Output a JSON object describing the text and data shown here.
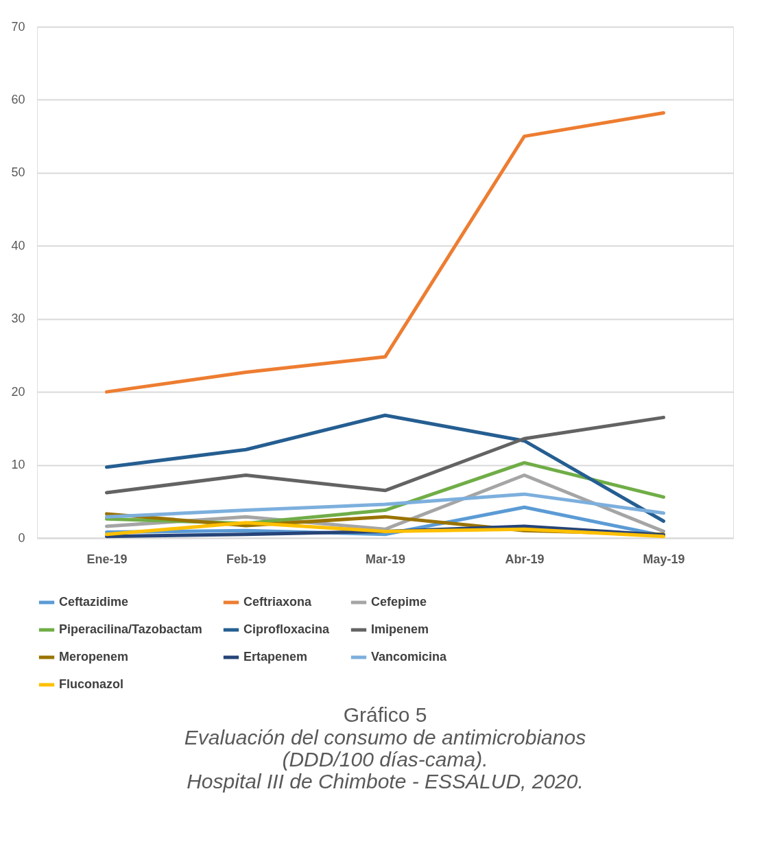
{
  "chart_data": {
    "type": "line",
    "title": "Gráfico 5",
    "subtitle": "Evaluación del consumo de antimicrobianos\n(DDD/100 días-cama).\nHospital III de Chimbote - ESSALUD, 2020.",
    "categories": [
      "Ene-19",
      "Feb-19",
      "Mar-19",
      "Abr-19",
      "May-19"
    ],
    "ylim": [
      0,
      70
    ],
    "yticks": [
      0,
      10,
      20,
      30,
      40,
      50,
      60,
      70
    ],
    "grid": "y",
    "legend": "bottom",
    "marker": "none",
    "line_style": "solid",
    "series": [
      {
        "name": "Ceftazidime",
        "color": "#5b9bd5",
        "values": [
          0.8,
          1.0,
          0.5,
          4.2,
          0.3
        ]
      },
      {
        "name": "Ceftriaxona",
        "color": "#ed7d31",
        "values": [
          20.0,
          22.7,
          24.8,
          55.0,
          58.2
        ]
      },
      {
        "name": "Cefepime",
        "color": "#a5a5a5",
        "values": [
          1.6,
          2.9,
          1.2,
          8.6,
          0.9
        ]
      },
      {
        "name": "Piperacilina/Tazobactam",
        "color": "#70ad47",
        "values": [
          2.6,
          2.0,
          3.8,
          10.3,
          5.6
        ]
      },
      {
        "name": "Ciprofloxacina",
        "color": "#255e91",
        "values": [
          9.7,
          12.1,
          16.8,
          13.3,
          2.3
        ]
      },
      {
        "name": "Imipenem",
        "color": "#636363",
        "values": [
          6.2,
          8.6,
          6.5,
          13.6,
          16.5
        ]
      },
      {
        "name": "Meropenem",
        "color": "#997300",
        "values": [
          3.3,
          1.7,
          2.9,
          1.0,
          0.5
        ]
      },
      {
        "name": "Ertapenem",
        "color": "#264478",
        "values": [
          0.2,
          0.5,
          0.9,
          1.6,
          0.4
        ]
      },
      {
        "name": "Vancomicina",
        "color": "#7cafdd",
        "values": [
          2.9,
          3.8,
          4.6,
          6.0,
          3.4
        ]
      },
      {
        "name": "Fluconazol",
        "color": "#ffc000",
        "values": [
          0.5,
          2.1,
          0.9,
          1.2,
          0.2
        ]
      }
    ]
  }
}
